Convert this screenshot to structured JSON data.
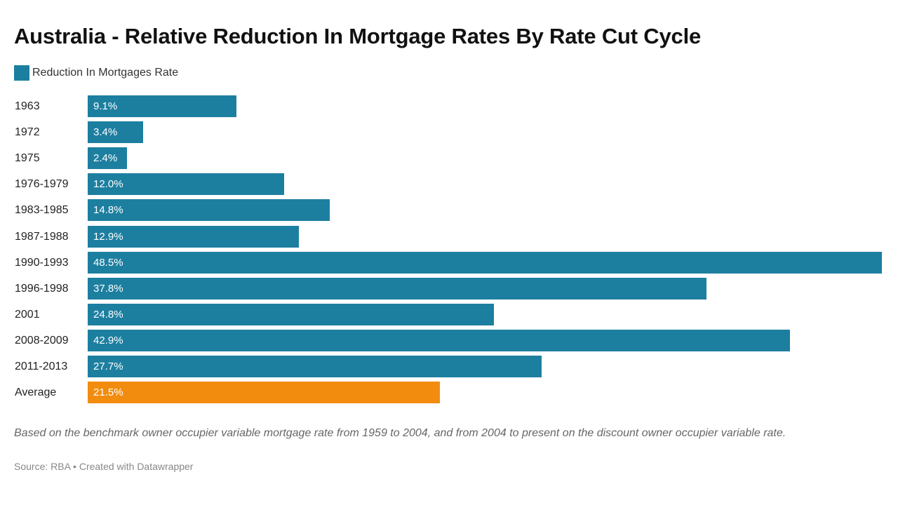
{
  "chart_data": {
    "type": "bar",
    "orientation": "horizontal",
    "title": "Australia - Relative Reduction In Mortgage Rates By Rate Cut Cycle",
    "legend": [
      {
        "label": "Reduction In Mortgages Rate",
        "color": "#1d7fa0"
      }
    ],
    "categories": [
      "1963",
      "1972",
      "1975",
      "1976-1979",
      "1983-1985",
      "1987-1988",
      "1990-1993",
      "1996-1998",
      "2001",
      "2008-2009",
      "2011-2013",
      "Average"
    ],
    "values": [
      9.1,
      3.4,
      2.4,
      12.0,
      14.8,
      12.9,
      48.5,
      37.8,
      24.8,
      42.9,
      27.7,
      21.5
    ],
    "value_labels": [
      "9.1%",
      "3.4%",
      "2.4%",
      "12.0%",
      "14.8%",
      "12.9%",
      "48.5%",
      "37.8%",
      "24.8%",
      "42.9%",
      "27.7%",
      "21.5%"
    ],
    "colors": [
      "#1d7fa0",
      "#1d7fa0",
      "#1d7fa0",
      "#1d7fa0",
      "#1d7fa0",
      "#1d7fa0",
      "#1d7fa0",
      "#1d7fa0",
      "#1d7fa0",
      "#1d7fa0",
      "#1d7fa0",
      "#f28c0f"
    ],
    "xlim": [
      0,
      48.5
    ],
    "xlabel": "",
    "ylabel": "",
    "grid": false,
    "legend_position": "top-left"
  },
  "notes": "Based on the benchmark owner occupier variable mortgage rate from 1959 to 2004, and from 2004 to present on the discount owner occupier variable rate.",
  "source": "Source: RBA • Created with Datawrapper"
}
